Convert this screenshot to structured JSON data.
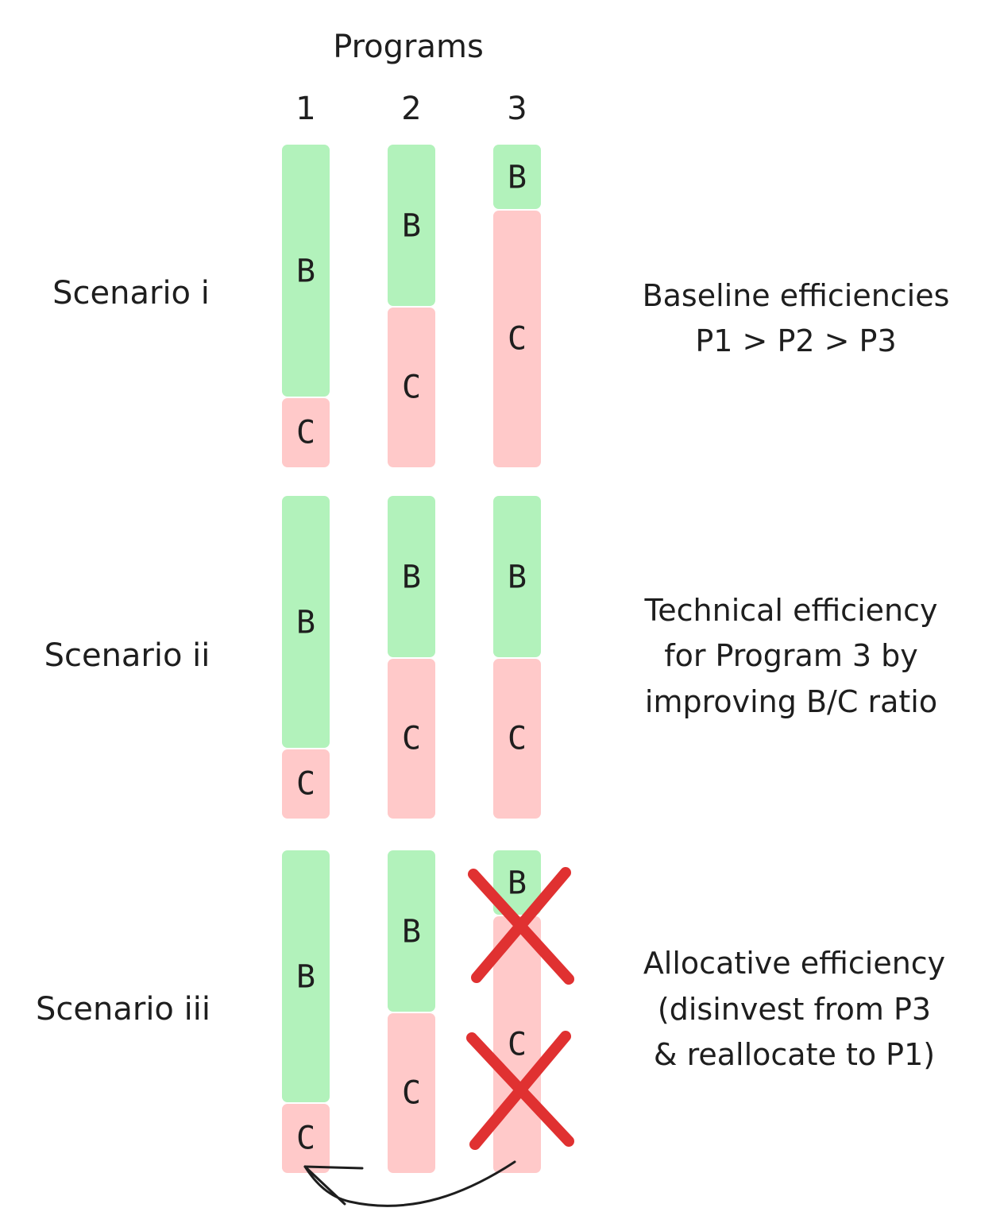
{
  "title": "Programs",
  "programs": [
    "1",
    "2",
    "3"
  ],
  "scenarios": [
    {
      "label": "Scenario i",
      "description": [
        "Baseline efficiencies",
        "P1 > P2 > P3"
      ],
      "bars": [
        {
          "benefit": "B",
          "cost": "C",
          "benefit_share": 0.78
        },
        {
          "benefit": "B",
          "cost": "C",
          "benefit_share": 0.5
        },
        {
          "benefit": "B",
          "cost": "C",
          "benefit_share": 0.2
        }
      ]
    },
    {
      "label": "Scenario ii",
      "description": [
        "Technical efficiency",
        "for Program 3 by",
        "improving B/C ratio"
      ],
      "bars": [
        {
          "benefit": "B",
          "cost": "C",
          "benefit_share": 0.78
        },
        {
          "benefit": "B",
          "cost": "C",
          "benefit_share": 0.5
        },
        {
          "benefit": "B",
          "cost": "C",
          "benefit_share": 0.5
        }
      ]
    },
    {
      "label": "Scenario iii",
      "description": [
        "Allocative efficiency",
        "(disinvest from P3",
        "& reallocate to P1)"
      ],
      "bars": [
        {
          "benefit": "B",
          "cost": "C",
          "benefit_share": 0.78
        },
        {
          "benefit": "B",
          "cost": "C",
          "benefit_share": 0.5
        },
        {
          "benefit": "B",
          "cost": "C",
          "benefit_share": 0.2,
          "crossed_out": true
        }
      ],
      "arrow": {
        "from": "Program 3",
        "to": "Program 1"
      }
    }
  ],
  "colors": {
    "benefit": "#b2f2bb",
    "cost": "#ffc9c9",
    "cross": "#e03131",
    "text": "#1e1e1e"
  }
}
